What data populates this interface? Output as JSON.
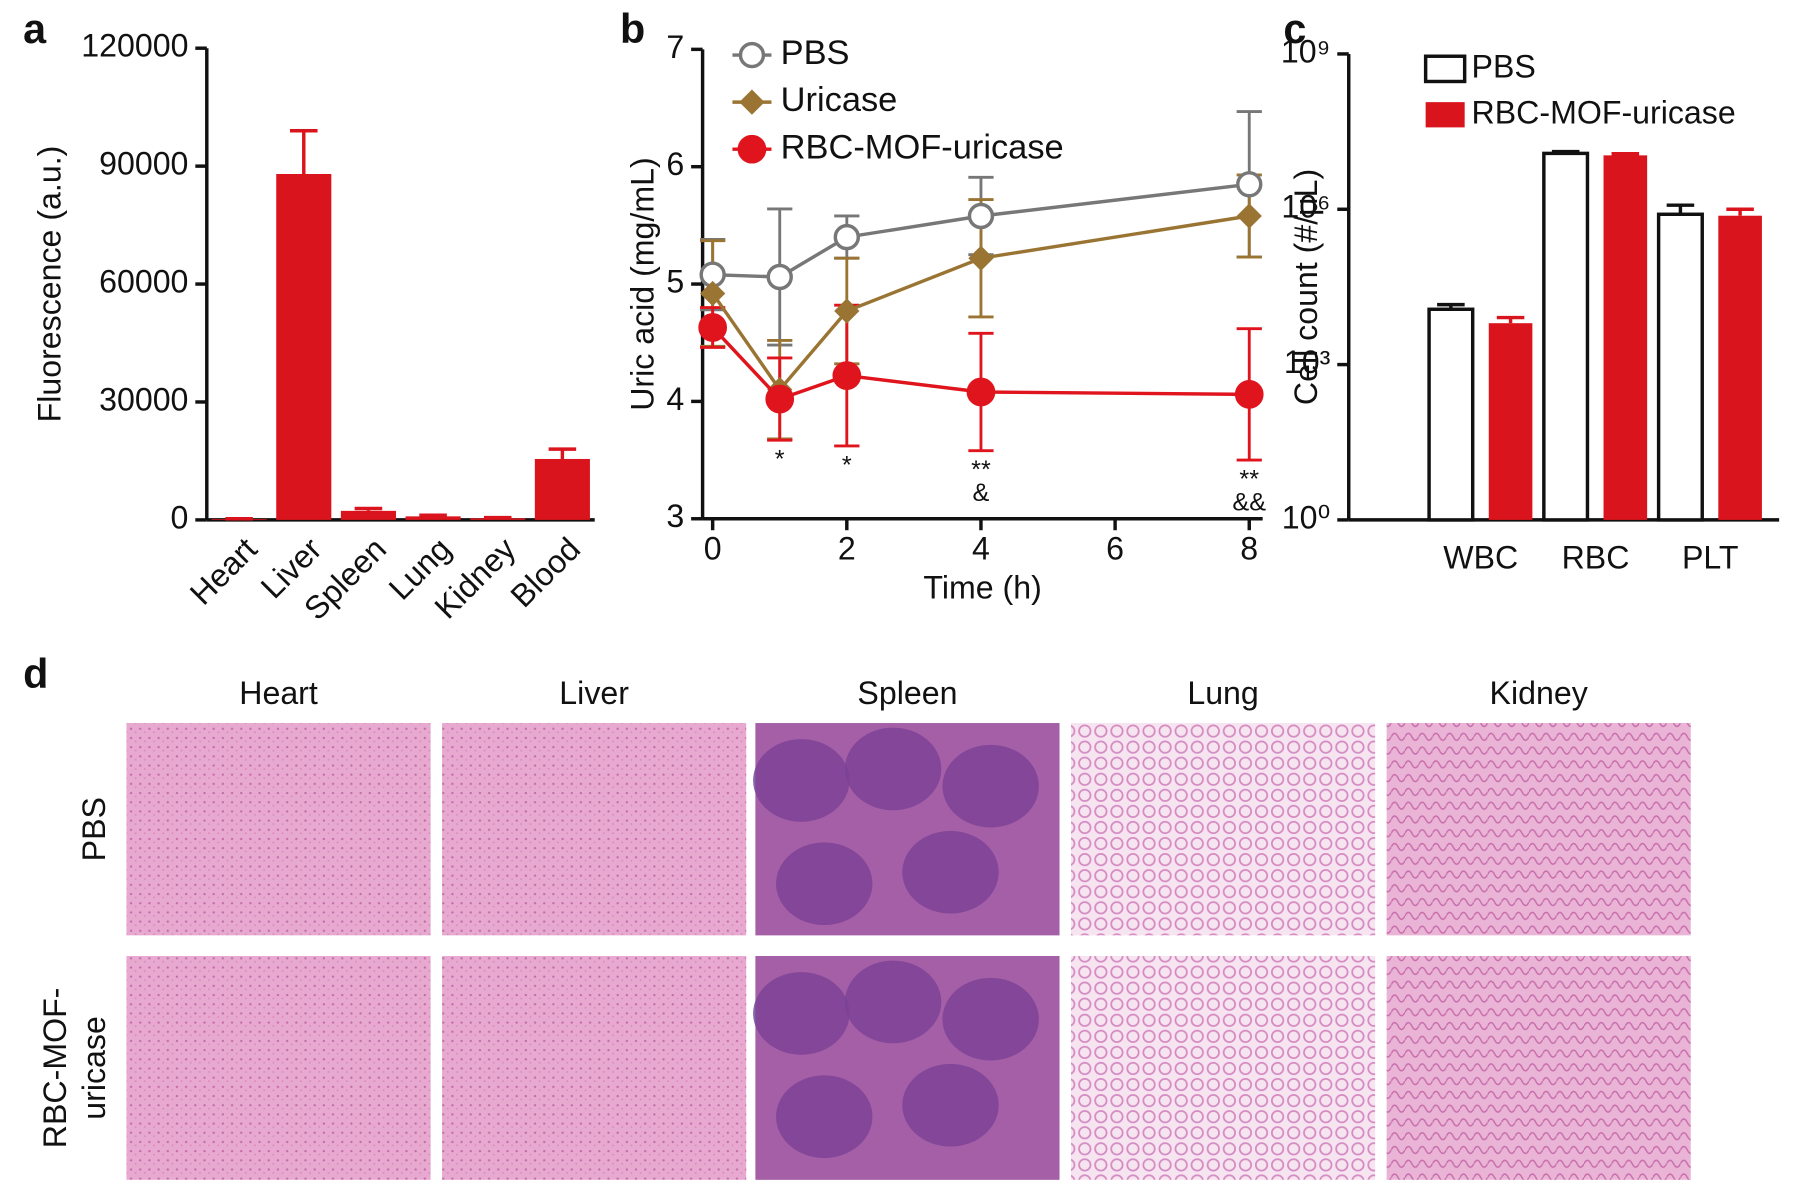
{
  "chart_data": [
    {
      "type": "bar",
      "panel_label": "a",
      "ylabel": "Fluorescence (a.u.)",
      "categories": [
        "Heart",
        "Liver",
        "Spleen",
        "Lung",
        "Kidney",
        "Blood"
      ],
      "values": [
        200,
        88000,
        2300,
        900,
        400,
        15500
      ],
      "errors": [
        100,
        11000,
        600,
        300,
        200,
        2500
      ],
      "color": "#d9141c",
      "ylim": [
        0,
        120000
      ],
      "yticks": [
        0,
        30000,
        60000,
        90000,
        120000
      ]
    },
    {
      "type": "line",
      "panel_label": "b",
      "xlabel": "Time (h)",
      "ylabel": "Uric acid (mg/mL)",
      "x": [
        0,
        1,
        2,
        4,
        8
      ],
      "series": [
        {
          "name": "PBS",
          "color": "#777777",
          "marker": "open-circle",
          "values": [
            5.08,
            5.06,
            5.4,
            5.58,
            5.85
          ],
          "errors": [
            0.3,
            0.58,
            0.18,
            0.33,
            0.62
          ]
        },
        {
          "name": "Uricase",
          "color": "#9a7433",
          "marker": "diamond",
          "values": [
            4.92,
            4.1,
            4.77,
            5.22,
            5.58
          ],
          "errors": [
            0.45,
            0.42,
            0.45,
            0.5,
            0.35
          ]
        },
        {
          "name": "RBC-MOF-uricase",
          "color": "#e0141c",
          "marker": "circle",
          "values": [
            4.63,
            4.02,
            4.22,
            4.08,
            4.06
          ],
          "errors": [
            0.17,
            0.35,
            0.6,
            0.5,
            0.56
          ]
        }
      ],
      "xlim": [
        -0.15,
        8.2
      ],
      "xticks": [
        0,
        2,
        4,
        6,
        8
      ],
      "ylim": [
        3,
        7
      ],
      "yticks": [
        3,
        4,
        5,
        6,
        7
      ],
      "annotations": [
        {
          "x": 1,
          "text": [
            "*"
          ]
        },
        {
          "x": 2,
          "text": [
            "*"
          ]
        },
        {
          "x": 4,
          "text": [
            "**",
            "&"
          ]
        },
        {
          "x": 8,
          "text": [
            "**",
            "&&"
          ]
        }
      ]
    },
    {
      "type": "bar",
      "panel_label": "c",
      "ylabel": "Cell count (#/μL)",
      "log_scale": true,
      "categories": [
        "WBC",
        "RBC",
        "PLT"
      ],
      "series": [
        {
          "name": "PBS",
          "color": "#ffffff",
          "values": [
            11700,
            12000000,
            800000
          ],
          "errors": [
            2700,
            1000000,
            400000
          ]
        },
        {
          "name": "RBC-MOF-uricase",
          "color": "#d9141c",
          "values": [
            6300,
            11000000,
            750000
          ],
          "errors": [
            1800,
            800000,
            250000
          ]
        }
      ],
      "ylim": [
        1,
        1000000000
      ],
      "yticks": [
        {
          "value": 1,
          "label": "10⁰"
        },
        {
          "value": 1000,
          "label": "10³"
        },
        {
          "value": 1000000,
          "label": "10⁶"
        },
        {
          "value": 1000000000,
          "label": "10⁹"
        }
      ]
    }
  ],
  "histology": {
    "panel_label": "d",
    "columns": [
      "Heart",
      "Liver",
      "Spleen",
      "Lung",
      "Kidney"
    ],
    "rows": [
      [
        "PBS"
      ],
      [
        "RBC-MOF-",
        "uricase"
      ]
    ]
  }
}
